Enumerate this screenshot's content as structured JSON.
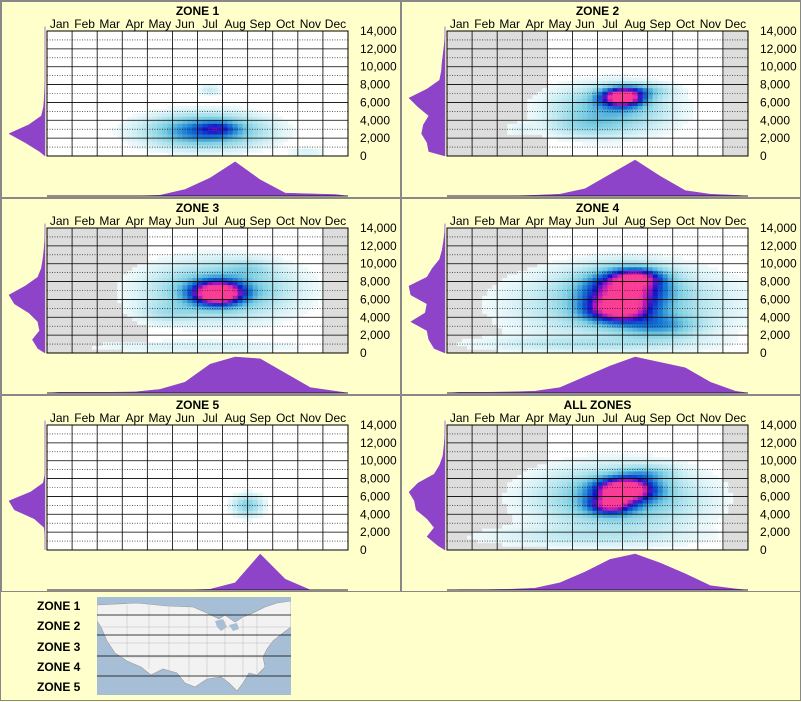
{
  "months": [
    "Jan",
    "Feb",
    "Mar",
    "Apr",
    "May",
    "Jun",
    "Jul",
    "Aug",
    "Sep",
    "Oct",
    "Nov",
    "Dec"
  ],
  "y_ticks": [
    "0",
    "2,000",
    "4,000",
    "6,000",
    "8,000",
    "10,000",
    "12,000",
    "14,000"
  ],
  "legend": {
    "zones": [
      "ZONE 1",
      "ZONE 2",
      "ZONE 3",
      "ZONE 4",
      "ZONE 5"
    ]
  },
  "colors": {
    "background": "#ffffcc",
    "panel_bg": "#ffffff",
    "shaded_month": "#dddddd",
    "density_purple": "#8e44c9",
    "map_water": "#a7bfd6",
    "map_land": "#f4f4f4"
  },
  "chart_data": [
    {
      "type": "heatmap",
      "title": "ZONE 1",
      "ylim": [
        0,
        14000
      ],
      "shaded_months": [],
      "blobs": [
        {
          "month": 6.8,
          "elev": 2800,
          "sx": 1.5,
          "sy": 1200,
          "w": 0.55
        },
        {
          "month": 7.3,
          "elev": 3100,
          "sx": 0.5,
          "sy": 500,
          "w": 0.25
        },
        {
          "month": 7.0,
          "elev": 7400,
          "sx": 0.3,
          "sy": 400,
          "w": 0.12
        },
        {
          "month": 10.9,
          "elev": 400,
          "sx": 0.5,
          "sy": 400,
          "w": 0.08
        }
      ],
      "month_density": [
        0,
        0,
        0,
        0,
        0.02,
        0.18,
        0.5,
        0.95,
        0.45,
        0.08,
        0.06,
        0.04
      ],
      "elev_density": [
        0.15,
        0.55,
        1.0,
        0.45,
        0.1,
        0.04,
        0.02,
        0.01,
        0,
        0,
        0,
        0,
        0,
        0,
        0
      ]
    },
    {
      "type": "heatmap",
      "title": "ZONE 2",
      "ylim": [
        0,
        14000
      ],
      "shaded_months": [
        1,
        2,
        3,
        4,
        12
      ],
      "blobs": [
        {
          "month": 7.5,
          "elev": 6600,
          "sx": 0.6,
          "sy": 700,
          "w": 1.0
        },
        {
          "month": 7.0,
          "elev": 5200,
          "sx": 1.5,
          "sy": 1700,
          "w": 0.35
        },
        {
          "month": 6.0,
          "elev": 3300,
          "sx": 1.0,
          "sy": 800,
          "w": 0.12
        },
        {
          "month": 3.4,
          "elev": 3000,
          "sx": 0.4,
          "sy": 500,
          "w": 0.06
        },
        {
          "month": 8.3,
          "elev": 7400,
          "sx": 0.8,
          "sy": 500,
          "w": 0.2
        }
      ],
      "month_density": [
        0,
        0,
        0,
        0.02,
        0.05,
        0.2,
        0.6,
        1.0,
        0.55,
        0.15,
        0.05,
        0.02
      ],
      "elev_density": [
        0.45,
        0.5,
        0.65,
        0.6,
        0.45,
        0.75,
        1.0,
        0.5,
        0.15,
        0.1,
        0.08,
        0.05,
        0.02,
        0,
        0
      ]
    },
    {
      "type": "heatmap",
      "title": "ZONE 3",
      "ylim": [
        0,
        14000
      ],
      "shaded_months": [
        1,
        2,
        3,
        4,
        12
      ],
      "blobs": [
        {
          "month": 7.3,
          "elev": 6700,
          "sx": 0.7,
          "sy": 900,
          "w": 1.0
        },
        {
          "month": 7.4,
          "elev": 7000,
          "sx": 1.8,
          "sy": 2000,
          "w": 0.4
        },
        {
          "month": 5.3,
          "elev": 4500,
          "sx": 0.8,
          "sy": 800,
          "w": 0.12
        },
        {
          "month": 8.5,
          "elev": 9500,
          "sx": 0.6,
          "sy": 600,
          "w": 0.12
        },
        {
          "month": 6.5,
          "elev": 700,
          "sx": 3.0,
          "sy": 500,
          "w": 0.08
        }
      ],
      "month_density": [
        0.02,
        0.02,
        0.02,
        0.03,
        0.1,
        0.3,
        0.8,
        1.0,
        0.95,
        0.55,
        0.15,
        0.05
      ],
      "elev_density": [
        0.2,
        0.35,
        0.15,
        0.2,
        0.45,
        0.85,
        1.0,
        0.55,
        0.2,
        0.1,
        0.06,
        0.03,
        0.01,
        0,
        0
      ]
    },
    {
      "type": "heatmap",
      "title": "ZONE 4",
      "ylim": [
        0,
        14000
      ],
      "shaded_months": [
        1,
        2,
        3,
        4
      ],
      "blobs": [
        {
          "month": 7.6,
          "elev": 7200,
          "sx": 1.1,
          "sy": 1400,
          "w": 0.8
        },
        {
          "month": 7.3,
          "elev": 4800,
          "sx": 0.9,
          "sy": 1000,
          "w": 0.75
        },
        {
          "month": 8.1,
          "elev": 8500,
          "sx": 0.7,
          "sy": 700,
          "w": 0.5
        },
        {
          "month": 7.5,
          "elev": 5500,
          "sx": 2.6,
          "sy": 2500,
          "w": 0.3
        },
        {
          "month": 9.0,
          "elev": 3000,
          "sx": 1.0,
          "sy": 900,
          "w": 0.3
        },
        {
          "month": 6.0,
          "elev": 1000,
          "sx": 3.0,
          "sy": 600,
          "w": 0.12
        }
      ],
      "month_density": [
        0.02,
        0.02,
        0.03,
        0.05,
        0.15,
        0.45,
        0.75,
        1.0,
        0.85,
        0.7,
        0.3,
        0.05
      ],
      "elev_density": [
        0.3,
        0.45,
        0.5,
        0.95,
        0.55,
        0.5,
        0.95,
        1.0,
        0.5,
        0.35,
        0.15,
        0.08,
        0.04,
        0.01,
        0
      ]
    },
    {
      "type": "heatmap",
      "title": "ZONE 5",
      "ylim": [
        0,
        14000
      ],
      "shaded_months": [],
      "blobs": [
        {
          "month": 8.5,
          "elev": 5000,
          "sx": 0.4,
          "sy": 800,
          "w": 0.28
        }
      ],
      "month_density": [
        0,
        0,
        0,
        0,
        0,
        0,
        0.02,
        0.2,
        1.0,
        0.3,
        0,
        0
      ],
      "elev_density": [
        0,
        0,
        0.02,
        0.3,
        0.85,
        1.0,
        0.4,
        0.05,
        0,
        0,
        0,
        0,
        0,
        0,
        0
      ]
    },
    {
      "type": "heatmap",
      "title": "ALL ZONES",
      "ylim": [
        0,
        14000
      ],
      "shaded_months": [
        1,
        2,
        3,
        4,
        12
      ],
      "blobs": [
        {
          "month": 7.6,
          "elev": 6800,
          "sx": 0.8,
          "sy": 900,
          "w": 1.0
        },
        {
          "month": 7.0,
          "elev": 5000,
          "sx": 0.6,
          "sy": 700,
          "w": 0.6
        },
        {
          "month": 7.3,
          "elev": 5800,
          "sx": 2.0,
          "sy": 2200,
          "w": 0.4
        },
        {
          "month": 8.5,
          "elev": 8600,
          "sx": 0.7,
          "sy": 600,
          "w": 0.2
        },
        {
          "month": 6.0,
          "elev": 1500,
          "sx": 3.0,
          "sy": 800,
          "w": 0.1
        }
      ],
      "month_density": [
        0.01,
        0.01,
        0.02,
        0.05,
        0.2,
        0.5,
        0.85,
        1.0,
        0.75,
        0.45,
        0.12,
        0.03
      ],
      "elev_density": [
        0.2,
        0.5,
        0.3,
        0.5,
        0.8,
        0.85,
        1.0,
        0.75,
        0.3,
        0.15,
        0.06,
        0.03,
        0.01,
        0,
        0
      ]
    }
  ]
}
